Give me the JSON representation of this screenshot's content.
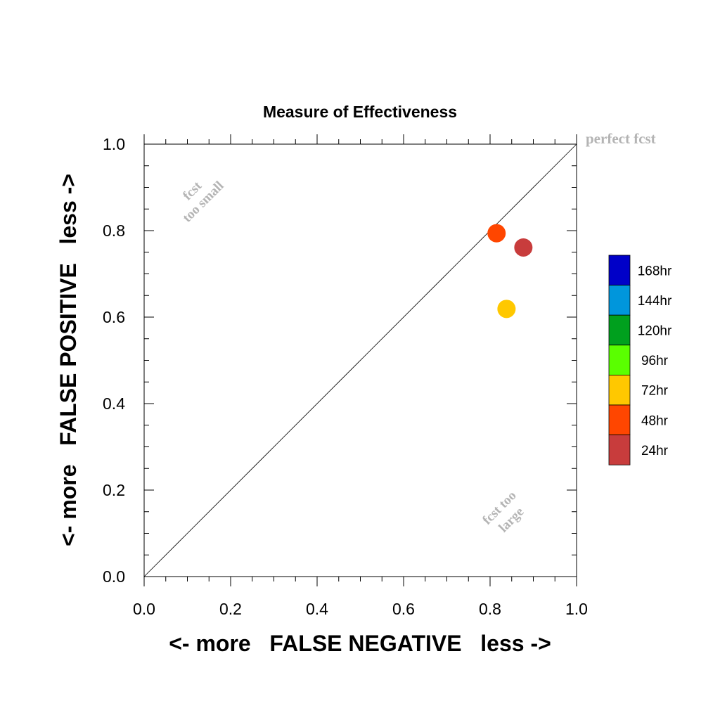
{
  "chart_data": {
    "type": "scatter",
    "title": "Measure of Effectiveness",
    "xlabel": "<- more   FALSE NEGATIVE   less ->",
    "ylabel": "<- more   FALSE POSITIVE   less ->",
    "xlim": [
      0.0,
      1.0
    ],
    "ylim": [
      0.0,
      1.0
    ],
    "xticks": [
      "0.0",
      "0.2",
      "0.4",
      "0.6",
      "0.8",
      "1.0"
    ],
    "yticks": [
      "0.0",
      "0.2",
      "0.4",
      "0.6",
      "0.8",
      "1.0"
    ],
    "grid": false,
    "reference_line": {
      "from": [
        0,
        0
      ],
      "to": [
        1,
        1
      ]
    },
    "annotations": {
      "perfect": "perfect fcst",
      "too_small_1": "fcst",
      "too_small_2": "too small",
      "too_large_1": "fcst too",
      "too_large_2": "large"
    },
    "points": [
      {
        "lead": "24hr",
        "x": 0.877,
        "y": 0.761
      },
      {
        "lead": "48hr",
        "x": 0.815,
        "y": 0.794
      },
      {
        "lead": "72hr",
        "x": 0.838,
        "y": 0.619
      }
    ],
    "legend_placement": "right",
    "legend": [
      {
        "label": "168hr",
        "color": "#0000c8"
      },
      {
        "label": "144hr",
        "color": "#0096dc"
      },
      {
        "label": "120hr",
        "color": "#00a01e"
      },
      {
        "label": "96hr",
        "color": "#5aff00"
      },
      {
        "label": "72hr",
        "color": "#ffc800"
      },
      {
        "label": "48hr",
        "color": "#ff4600"
      },
      {
        "label": "24hr",
        "color": "#c83c3c"
      }
    ]
  }
}
